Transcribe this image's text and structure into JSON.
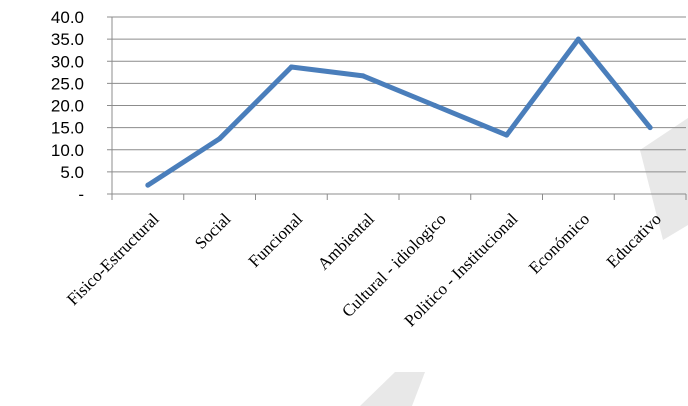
{
  "chart_data": {
    "type": "line",
    "categories": [
      "Fisico-Estructural",
      "Social",
      "Funcional",
      "Ambiental",
      "Cultural - idiologico",
      "Politico - Institucional",
      "Económico",
      "Educativo"
    ],
    "series": [
      {
        "values": [
          2.0,
          12.5,
          28.7,
          26.7,
          20.0,
          13.3,
          35.0,
          15.0
        ]
      }
    ],
    "y_ticks": [
      "-",
      "5.0",
      "10.0",
      "15.0",
      "20.0",
      "25.0",
      "30.0",
      "35.0",
      "40.0"
    ],
    "ylim": [
      0,
      40
    ],
    "grid": true,
    "legend": "none",
    "line_color": "#4a7ebb",
    "grid_color": "#8c8c8c"
  }
}
